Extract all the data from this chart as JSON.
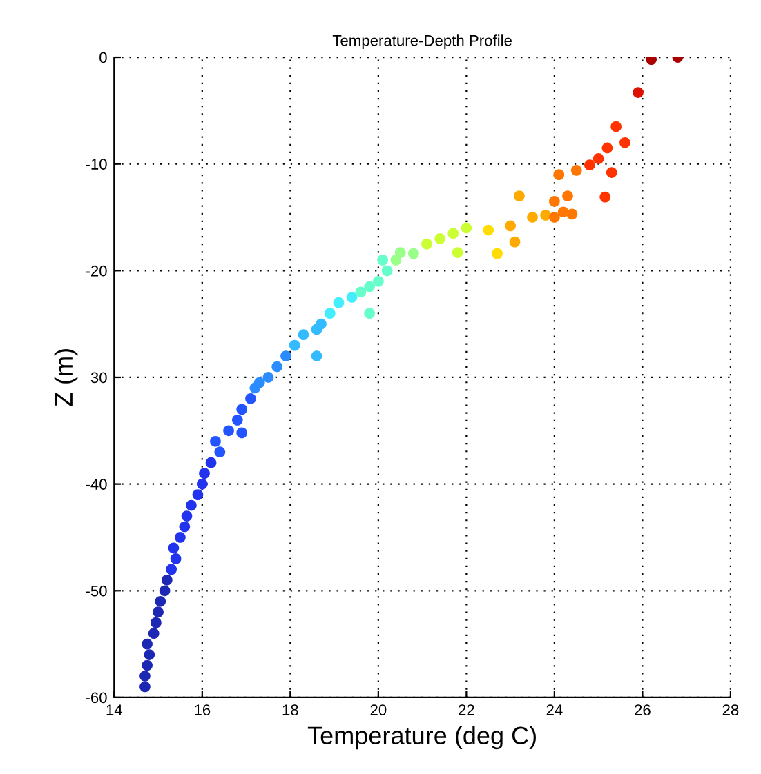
{
  "chart_data": {
    "type": "scatter",
    "title": "Temperature-Depth Profile",
    "xlabel": "Temperature (deg C)",
    "ylabel": "Z (m)",
    "xlim": [
      14,
      28
    ],
    "xticks": [
      14,
      16,
      18,
      20,
      22,
      24,
      26,
      28
    ],
    "ylim": [
      -60,
      0
    ],
    "yticks": [
      -60,
      -50,
      -40,
      {
        "value": -30,
        "label": "30"
      },
      -20,
      -10,
      0
    ],
    "grid": true,
    "marker": "circle",
    "legend": false,
    "series": [
      {
        "x": [
          14.7,
          14.7,
          14.75,
          14.8,
          14.75,
          14.9,
          14.95,
          15.0,
          15.05,
          15.15,
          15.2,
          15.3,
          15.4,
          15.35,
          15.5,
          15.6,
          15.65,
          15.75,
          15.9,
          16.0,
          16.05,
          16.2,
          16.4,
          16.3,
          16.6,
          16.9,
          16.8,
          16.9,
          17.1,
          17.2,
          17.5,
          17.3,
          17.7,
          17.9,
          18.1,
          18.3,
          18.6,
          18.6,
          18.7,
          18.9,
          19.1,
          19.4,
          19.8,
          19.6,
          19.8,
          20.0,
          20.2,
          20.1,
          20.4,
          20.5,
          20.8,
          21.1,
          21.4,
          21.7,
          22.0,
          21.8,
          22.5,
          22.7,
          23.0,
          23.1,
          23.2,
          23.5,
          23.8,
          24.0,
          24.2,
          24.0,
          24.3,
          24.4,
          24.1,
          24.5,
          24.8,
          25.0,
          25.2,
          25.4,
          25.6,
          25.3,
          25.15,
          25.9,
          26.2,
          26.8
        ],
        "values": [
          -59,
          -58,
          -57,
          -56,
          -55,
          -54,
          -53,
          -52,
          -51,
          -50,
          -49,
          -48,
          -47,
          -46,
          -45,
          -44,
          -43,
          -42,
          -41,
          -40,
          -39,
          -38,
          -37,
          -36,
          -35,
          -35.2,
          -34,
          -33,
          -32,
          -31,
          -30,
          -30.5,
          -29,
          -28,
          -27,
          -26,
          -25.5,
          -28,
          -25,
          -24,
          -23,
          -22.5,
          -24,
          -22,
          -21.5,
          -21,
          -20,
          -19,
          -19,
          -18.3,
          -18.4,
          -17.5,
          -17,
          -16.5,
          -16,
          -18.3,
          -16.2,
          -18.4,
          -15.8,
          -17.3,
          -13.0,
          -15,
          -14.8,
          -15,
          -14.5,
          -13.5,
          -13,
          -14.7,
          -11,
          -10.6,
          -10.1,
          -9.5,
          -8.5,
          -6.5,
          -8.0,
          -10.8,
          -13.1,
          -3.3,
          -0.2,
          0
        ],
        "colors": [
          "#1c28b4",
          "#1c28b4",
          "#1c28b4",
          "#1c28b4",
          "#1c28b4",
          "#1c28b4",
          "#1c28b4",
          "#1c28b4",
          "#1c28b4",
          "#1c28b4",
          "#1c28b4",
          "#2233ee",
          "#2233ee",
          "#2233ee",
          "#2233ee",
          "#2233ee",
          "#2233ee",
          "#2233ee",
          "#2233ee",
          "#2233ee",
          "#2233ee",
          "#2233ee",
          "#2255ff",
          "#2255ff",
          "#2255ff",
          "#2255ff",
          "#2255ff",
          "#2255ff",
          "#2255ff",
          "#2a8cff",
          "#2a8cff",
          "#2a8cff",
          "#2a8cff",
          "#2a8cff",
          "#33bbff",
          "#33bbff",
          "#33bbff",
          "#33bbff",
          "#33bbff",
          "#44eeff",
          "#44eeff",
          "#44eeff",
          "#66ffcc",
          "#66ffcc",
          "#66ffcc",
          "#66ffcc",
          "#66ffcc",
          "#66ffcc",
          "#99ff88",
          "#99ff88",
          "#99ff88",
          "#ccff33",
          "#ccff33",
          "#ccff33",
          "#ccff33",
          "#ccff33",
          "#ffdd00",
          "#ffdd00",
          "#ffaa00",
          "#ffaa00",
          "#ffaa00",
          "#ffaa00",
          "#ffaa00",
          "#ff7700",
          "#ff7700",
          "#ff7700",
          "#ff7700",
          "#ff7700",
          "#ff7700",
          "#ff7700",
          "#ff3300",
          "#ff3300",
          "#ff3300",
          "#ff3300",
          "#ff3300",
          "#ff3300",
          "#ff3300",
          "#dd1100",
          "#aa0000",
          "#aa0000"
        ]
      }
    ]
  }
}
